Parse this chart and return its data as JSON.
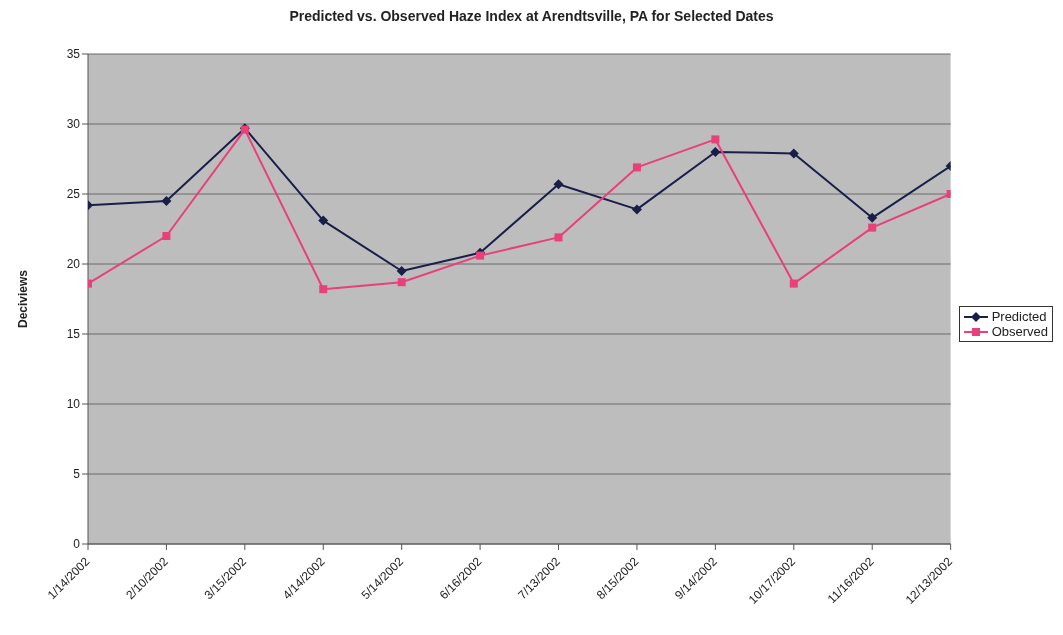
{
  "chart_data": {
    "type": "line",
    "title": "Predicted vs. Observed Haze Index at Arendtsville, PA for Selected Dates",
    "ylabel": "Deciviews",
    "categories": [
      "1/14/2002",
      "2/10/2002",
      "3/15/2002",
      "4/14/2002",
      "5/14/2002",
      "6/16/2002",
      "7/13/2002",
      "8/15/2002",
      "9/14/2002",
      "10/17/2002",
      "11/16/2002",
      "12/13/2002"
    ],
    "series": [
      {
        "name": "Predicted",
        "color": "#1a1f4a",
        "marker": "diamond",
        "values": [
          24.2,
          24.5,
          29.7,
          23.1,
          19.5,
          20.8,
          25.7,
          23.9,
          28.0,
          27.9,
          23.3,
          27.0
        ]
      },
      {
        "name": "Observed",
        "color": "#e8407a",
        "marker": "square",
        "values": [
          18.6,
          22.0,
          29.6,
          18.2,
          18.7,
          20.6,
          21.9,
          26.9,
          28.9,
          18.6,
          22.6,
          25.0
        ]
      }
    ],
    "ylim": [
      0,
      35
    ],
    "yticks": [
      0,
      5,
      10,
      15,
      20,
      25,
      30,
      35
    ],
    "grid": "y",
    "legend": "right"
  }
}
